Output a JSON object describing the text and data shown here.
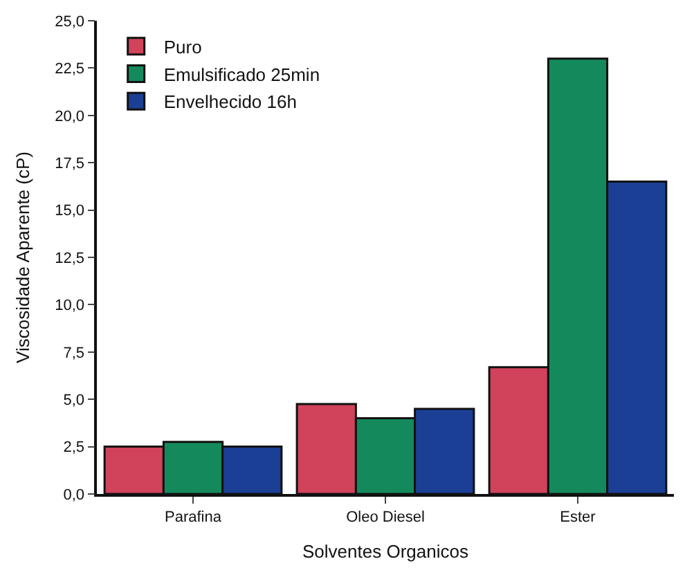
{
  "chart_data": {
    "type": "bar",
    "xlabel": "Solventes Organicos",
    "ylabel": "Viscosidade Aparente (cP)",
    "categories": [
      "Parafina",
      "Oleo Diesel",
      "Ester"
    ],
    "series": [
      {
        "name": "Puro",
        "color": "#d0435a",
        "values": [
          2.5,
          4.75,
          6.7
        ]
      },
      {
        "name": "Emulsificado 25min",
        "color": "#148a5c",
        "values": [
          2.75,
          4.0,
          23.0
        ]
      },
      {
        "name": "Envelhecido 16h",
        "color": "#1b3f94",
        "values": [
          2.5,
          4.5,
          16.5
        ]
      }
    ],
    "ylim": [
      0,
      25
    ],
    "yticks": [
      {
        "value": 0,
        "label": "0,0"
      },
      {
        "value": 2.5,
        "label": "2,5"
      },
      {
        "value": 5,
        "label": "5,0"
      },
      {
        "value": 7.5,
        "label": "7,5"
      },
      {
        "value": 10,
        "label": "10,0"
      },
      {
        "value": 12.5,
        "label": "12,5"
      },
      {
        "value": 15,
        "label": "15,0"
      },
      {
        "value": 17.5,
        "label": "17,5"
      },
      {
        "value": 20,
        "label": "20,0"
      },
      {
        "value": 22.5,
        "label": "22,5"
      },
      {
        "value": 25,
        "label": "25,0"
      }
    ],
    "legend": "top left"
  }
}
